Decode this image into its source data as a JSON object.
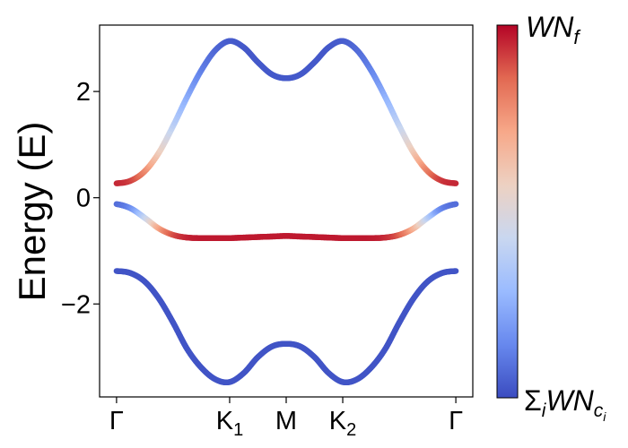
{
  "chart_data": {
    "type": "line",
    "title": "",
    "xlabel": "",
    "ylabel": "Energy (E)",
    "ylim": [
      -3.75,
      3.25
    ],
    "xlim": [
      -0.15,
      3.15
    ],
    "x_ticks": [
      {
        "pos": 0,
        "label": "Γ",
        "sub": ""
      },
      {
        "pos": 1,
        "label": "K",
        "sub": "1"
      },
      {
        "pos": 1.5,
        "label": "M",
        "sub": ""
      },
      {
        "pos": 2,
        "label": "K",
        "sub": "2"
      },
      {
        "pos": 3,
        "label": "Γ",
        "sub": ""
      }
    ],
    "y_ticks": [
      {
        "value": -2,
        "label": "−2"
      },
      {
        "value": 0,
        "label": "0"
      },
      {
        "value": 2,
        "label": "2"
      }
    ],
    "x": [
      0,
      0.125,
      0.25,
      0.375,
      0.5,
      0.625,
      0.75,
      0.875,
      1,
      1.125,
      1.25,
      1.375,
      1.5,
      1.625,
      1.75,
      1.875,
      2,
      2.125,
      2.25,
      2.375,
      2.5,
      2.625,
      2.75,
      2.875,
      3
    ],
    "series": [
      {
        "values": [
          0.27,
          0.32,
          0.5,
          0.85,
          1.35,
          1.9,
          2.4,
          2.78,
          2.95,
          2.83,
          2.55,
          2.32,
          2.25,
          2.32,
          2.55,
          2.83,
          2.95,
          2.78,
          2.4,
          1.9,
          1.35,
          0.85,
          0.5,
          0.32,
          0.27
        ],
        "weights": [
          0.95,
          0.92,
          0.8,
          0.6,
          0.4,
          0.25,
          0.13,
          0.07,
          0.04,
          0.03,
          0.03,
          0.03,
          0.03,
          0.03,
          0.03,
          0.03,
          0.04,
          0.07,
          0.13,
          0.25,
          0.4,
          0.6,
          0.8,
          0.92,
          0.95
        ]
      },
      {
        "values": [
          -0.12,
          -0.2,
          -0.38,
          -0.58,
          -0.7,
          -0.75,
          -0.76,
          -0.76,
          -0.76,
          -0.75,
          -0.74,
          -0.73,
          -0.72,
          -0.73,
          -0.74,
          -0.75,
          -0.76,
          -0.76,
          -0.76,
          -0.75,
          -0.7,
          -0.58,
          -0.38,
          -0.2,
          -0.12
        ],
        "weights": [
          0.08,
          0.15,
          0.4,
          0.7,
          0.88,
          0.95,
          0.97,
          0.97,
          0.97,
          0.97,
          0.97,
          0.97,
          0.97,
          0.97,
          0.97,
          0.97,
          0.97,
          0.97,
          0.97,
          0.95,
          0.88,
          0.7,
          0.4,
          0.15,
          0.08
        ]
      },
      {
        "values": [
          -1.38,
          -1.42,
          -1.58,
          -1.9,
          -2.35,
          -2.85,
          -3.2,
          -3.42,
          -3.47,
          -3.3,
          -3.0,
          -2.8,
          -2.75,
          -2.8,
          -3.0,
          -3.3,
          -3.47,
          -3.42,
          -3.2,
          -2.85,
          -2.35,
          -1.9,
          -1.58,
          -1.42,
          -1.38
        ],
        "weights": [
          0.02,
          0.02,
          0.02,
          0.02,
          0.02,
          0.02,
          0.02,
          0.02,
          0.02,
          0.02,
          0.02,
          0.02,
          0.02,
          0.02,
          0.02,
          0.02,
          0.02,
          0.02,
          0.02,
          0.02,
          0.02,
          0.02,
          0.02,
          0.02,
          0.02
        ]
      }
    ],
    "colorbar": {
      "colormap": "coolwarm",
      "colors": [
        "#3b4cc0",
        "#6788ee",
        "#9abbff",
        "#c9d7f0",
        "#edd1c2",
        "#f7a889",
        "#e26952",
        "#b40426"
      ],
      "top_label": "WN",
      "top_sub": "f",
      "bottom_prefix": "Σ",
      "bottom_sub_i": "i",
      "bottom_label": "WN",
      "bottom_sub": "c",
      "bottom_subsub": "i"
    },
    "grid": false
  }
}
